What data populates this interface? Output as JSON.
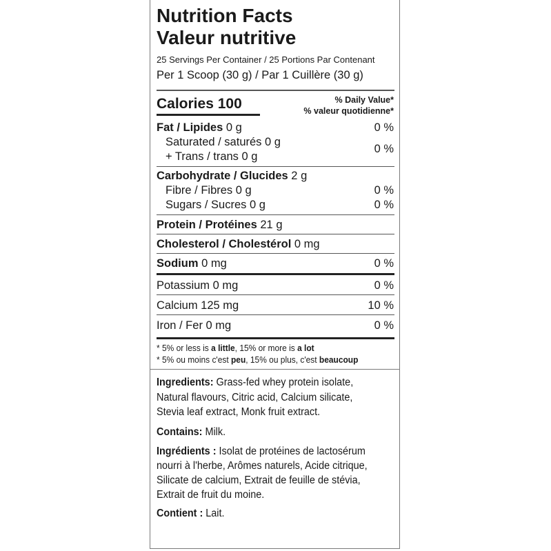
{
  "title_en": "Nutrition Facts",
  "title_fr": "Valeur nutritive",
  "servings": "25 Servings Per Container / 25 Portions Par Contenant",
  "serving_size": "Per 1 Scoop (30 g) / Par 1 Cuillère (30 g)",
  "calories": "Calories 100",
  "dv_en": "% Daily Value*",
  "dv_fr": "% valeur quotidienne*",
  "nutrients": [
    {
      "label": "Fat / Lipides",
      "amount": " 0 g",
      "dv": "0 %"
    },
    {
      "label": "Saturated / saturés 0 g",
      "amount": "",
      "dv": "0 %"
    },
    {
      "label": "+ Trans / trans 0 g",
      "amount": "",
      "dv": ""
    },
    {
      "label": "Carbohydrate / Glucides",
      "amount": " 2 g",
      "dv": ""
    },
    {
      "label": "Fibre / Fibres 0 g",
      "amount": "",
      "dv": "0 %"
    },
    {
      "label": "Sugars / Sucres 0 g",
      "amount": "",
      "dv": "0 %"
    },
    {
      "label": "Protein / Protéines",
      "amount": " 21 g",
      "dv": ""
    },
    {
      "label": "Cholesterol / Cholestérol",
      "amount": " 0 mg",
      "dv": ""
    },
    {
      "label": "Sodium",
      "amount": " 0 mg",
      "dv": "0 %"
    },
    {
      "label": "Potassium 0 mg",
      "amount": "",
      "dv": "0 %"
    },
    {
      "label": "Calcium 125 mg",
      "amount": "",
      "dv": "10 %"
    },
    {
      "label": "Iron / Fer 0 mg",
      "amount": "",
      "dv": "0 %"
    }
  ],
  "footnote_en": {
    "a": "* 5% or less is ",
    "b": "a little",
    "c": ", 15% or more is ",
    "d": "a lot"
  },
  "footnote_fr": {
    "a": "* 5% ou moins c'est ",
    "b": "peu",
    "c": ", 15% ou plus, c'est ",
    "d": "beaucoup"
  },
  "ingredients_en": {
    "label": "Ingredients:",
    "lines": [
      " Grass-fed whey protein isolate,",
      "Natural flavours, Citric acid, Calcium silicate,",
      "Stevia leaf extract, Monk fruit extract."
    ]
  },
  "contains_en": {
    "label": "Contains:",
    "value": " Milk."
  },
  "ingredients_fr": {
    "label": "Ingrédients :",
    "lines": [
      " Isolat de protéines de lactosérum",
      "nourri à l'herbe, Arômes naturels, Acide citrique,",
      "Silicate de calcium, Extrait de feuille de stévia,",
      "Extrait de fruit du moine."
    ]
  },
  "contains_fr": {
    "label": "Contient :",
    "value": " Lait."
  }
}
